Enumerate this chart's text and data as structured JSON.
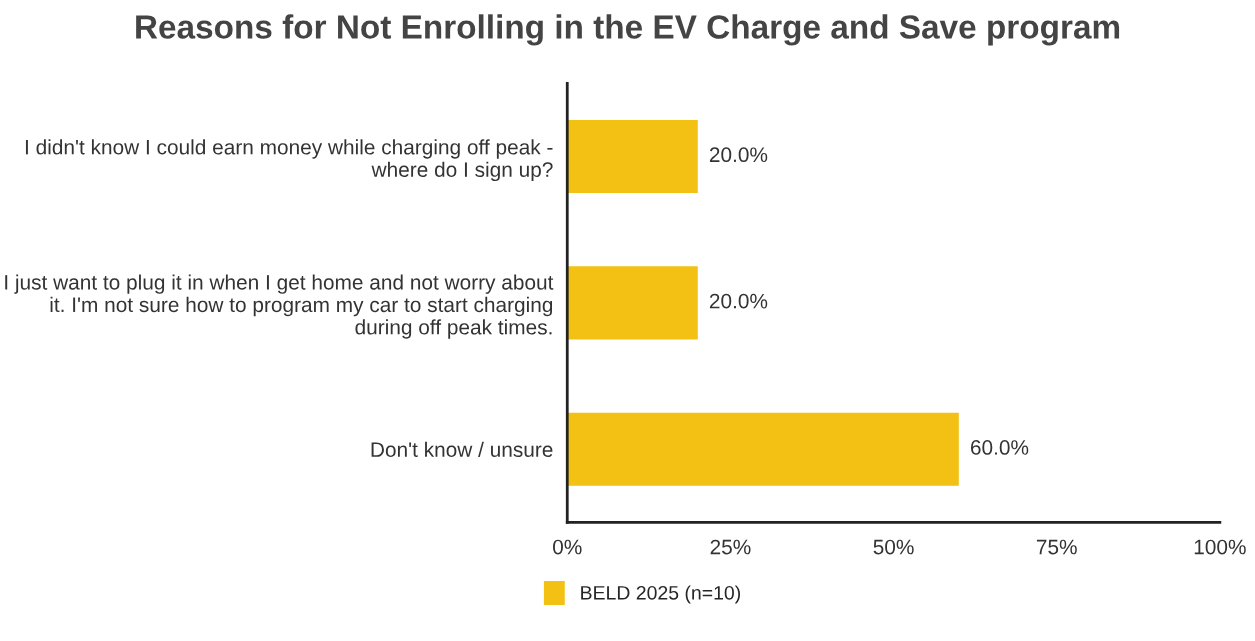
{
  "chart_data": {
    "type": "bar",
    "orientation": "horizontal",
    "title": "Reasons for Not Enrolling in the EV Charge and Save program",
    "categories": [
      "I didn't know I could earn money while charging off peak - where do I sign up?",
      "I just want to plug it in when I get home and not worry about it. I'm not sure how to program my car to start charging during off peak times.",
      "Don't know / unsure"
    ],
    "series": [
      {
        "name": "BELD 2025 (n=10)",
        "color": "#f2c114",
        "values": [
          20,
          20,
          60
        ],
        "value_labels": [
          "20.0%",
          "20.0%",
          "60.0%"
        ]
      }
    ],
    "xlim": [
      0,
      100
    ],
    "xticks": [
      {
        "value": 0,
        "label": "0%"
      },
      {
        "value": 25,
        "label": "25%"
      },
      {
        "value": 50,
        "label": "50%"
      },
      {
        "value": 75,
        "label": "75%"
      },
      {
        "value": 100,
        "label": "100%"
      }
    ],
    "grid": false,
    "legend": "bottom"
  }
}
